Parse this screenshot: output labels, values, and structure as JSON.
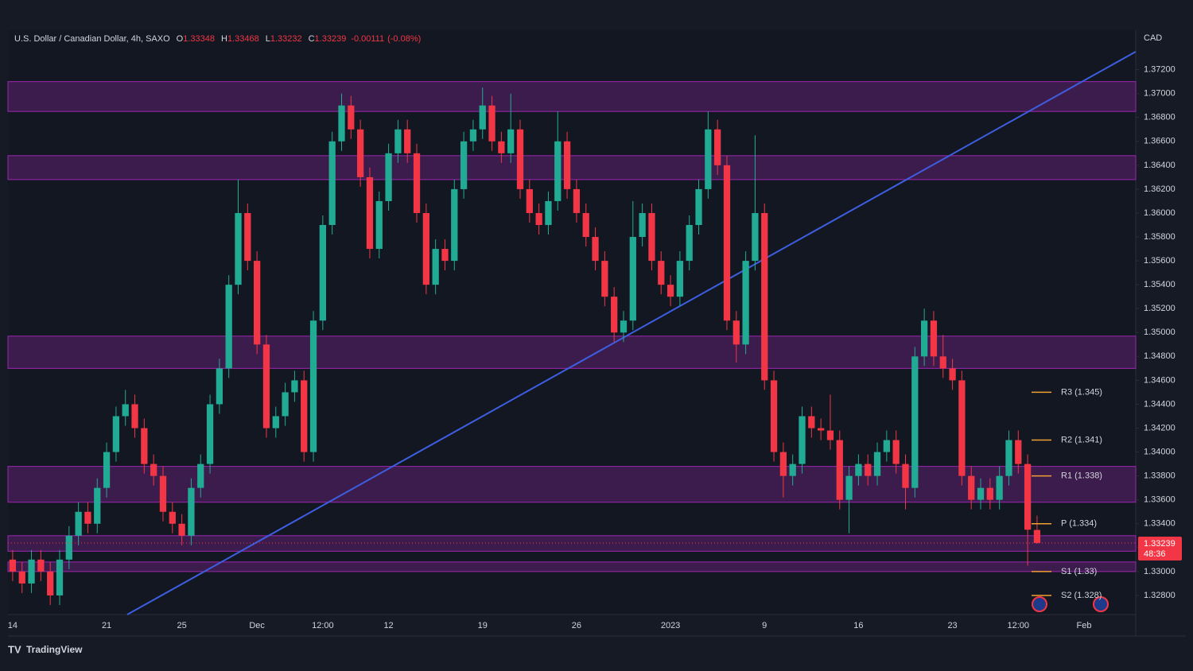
{
  "chart_data": {
    "type": "candlestick",
    "title": "U.S. Dollar / Canadian Dollar, 4h, SAXO",
    "header_values": [
      {
        "prefix": "O",
        "value": 1.33348
      },
      {
        "prefix": "H",
        "value": 1.33468
      },
      {
        "prefix": "L",
        "value": 1.33232
      },
      {
        "prefix": "C",
        "value": 1.33239
      }
    ],
    "change": -0.00111,
    "change_pct_label": "(-0.08%)",
    "currency": "CAD",
    "countdown": "48:36",
    "up_color": "#22ab94",
    "down_color": "#f23645",
    "zone_color": "#9c27b0",
    "pivot_color": "#f0a030",
    "grid": false,
    "ylim": [
      1.3264,
      1.3753
    ],
    "yticks": [
      {
        "value": 1.328,
        "label": "1.32800"
      },
      {
        "value": 1.33,
        "label": "1.33000"
      },
      {
        "value": 1.332,
        "label": "1.33200"
      },
      {
        "value": 1.334,
        "label": "1.33400"
      },
      {
        "value": 1.336,
        "label": "1.33600"
      },
      {
        "value": 1.338,
        "label": "1.33800"
      },
      {
        "value": 1.34,
        "label": "1.34000"
      },
      {
        "value": 1.342,
        "label": "1.34200"
      },
      {
        "value": 1.344,
        "label": "1.34400"
      },
      {
        "value": 1.346,
        "label": "1.34600"
      },
      {
        "value": 1.348,
        "label": "1.34800"
      },
      {
        "value": 1.35,
        "label": "1.35000"
      },
      {
        "value": 1.352,
        "label": "1.35200"
      },
      {
        "value": 1.354,
        "label": "1.35400"
      },
      {
        "value": 1.356,
        "label": "1.35600"
      },
      {
        "value": 1.358,
        "label": "1.35800"
      },
      {
        "value": 1.36,
        "label": "1.36000"
      },
      {
        "value": 1.362,
        "label": "1.36200"
      },
      {
        "value": 1.364,
        "label": "1.36400"
      },
      {
        "value": 1.366,
        "label": "1.36600"
      },
      {
        "value": 1.368,
        "label": "1.36800"
      },
      {
        "value": 1.37,
        "label": "1.37000"
      },
      {
        "value": 1.372,
        "label": "1.37200"
      }
    ],
    "categories": [
      "14",
      null,
      null,
      null,
      null,
      null,
      null,
      null,
      null,
      null,
      "21",
      null,
      null,
      null,
      null,
      null,
      null,
      null,
      "25",
      null,
      null,
      null,
      null,
      null,
      null,
      null,
      "Dec",
      null,
      null,
      null,
      null,
      null,
      null,
      "12:00",
      null,
      null,
      null,
      null,
      null,
      null,
      "12",
      null,
      null,
      null,
      null,
      null,
      null,
      null,
      null,
      null,
      "19",
      null,
      null,
      null,
      null,
      null,
      null,
      null,
      null,
      null,
      "26",
      null,
      null,
      null,
      null,
      null,
      null,
      null,
      null,
      null,
      "2023",
      null,
      null,
      null,
      null,
      null,
      null,
      null,
      null,
      null,
      "9",
      null,
      null,
      null,
      null,
      null,
      null,
      null,
      null,
      null,
      "16",
      null,
      null,
      null,
      null,
      null,
      null,
      null,
      null,
      null,
      "23",
      null,
      null,
      null,
      null,
      null,
      null,
      "12:00",
      null,
      null,
      null,
      null,
      null,
      null,
      "Feb",
      null,
      null,
      null,
      null,
      null
    ],
    "open": [
      1.331,
      1.33,
      1.329,
      1.331,
      1.33,
      1.328,
      1.331,
      1.333,
      1.335,
      1.334,
      1.337,
      1.34,
      1.343,
      1.344,
      1.342,
      1.339,
      1.338,
      1.335,
      1.334,
      1.333,
      1.337,
      1.339,
      1.344,
      1.347,
      1.354,
      1.36,
      1.356,
      1.349,
      1.342,
      1.343,
      1.345,
      1.346,
      1.34,
      1.351,
      1.359,
      1.366,
      1.369,
      1.367,
      1.363,
      1.357,
      1.361,
      1.365,
      1.367,
      1.365,
      1.36,
      1.354,
      1.357,
      1.356,
      1.362,
      1.366,
      1.367,
      1.369,
      1.366,
      1.365,
      1.367,
      1.362,
      1.36,
      1.359,
      1.361,
      1.366,
      1.362,
      1.36,
      1.358,
      1.356,
      1.353,
      1.35,
      1.351,
      1.358,
      1.36,
      1.356,
      1.354,
      1.353,
      1.356,
      1.359,
      1.362,
      1.367,
      1.364,
      1.351,
      1.349,
      1.356,
      1.36,
      1.346,
      1.34,
      1.338,
      1.339,
      1.343,
      1.342,
      1.3418,
      1.341,
      1.336,
      1.338,
      1.339,
      1.338,
      1.34,
      1.341,
      1.339,
      1.337,
      1.348,
      1.351,
      1.348,
      1.347,
      1.346,
      1.338,
      1.336,
      1.337,
      1.336,
      1.338,
      1.341,
      1.339,
      1.33348,
      null,
      null,
      null,
      null,
      null,
      null,
      null,
      null,
      null,
      null
    ],
    "high": [
      1.3318,
      1.3308,
      1.3318,
      1.3318,
      1.3308,
      1.3318,
      1.3338,
      1.3358,
      1.3358,
      1.3378,
      1.3408,
      1.3438,
      1.3452,
      1.3448,
      1.3428,
      1.3398,
      1.3388,
      1.3358,
      1.3348,
      1.3378,
      1.3398,
      1.3448,
      1.3478,
      1.3548,
      1.3628,
      1.3608,
      1.3568,
      1.3498,
      1.3438,
      1.3458,
      1.3468,
      1.3468,
      1.3518,
      1.3598,
      1.3668,
      1.37,
      1.3698,
      1.3678,
      1.3638,
      1.3618,
      1.3658,
      1.3678,
      1.3678,
      1.3658,
      1.3608,
      1.3578,
      1.3578,
      1.3628,
      1.3668,
      1.3678,
      1.3705,
      1.3698,
      1.3668,
      1.37,
      1.3678,
      1.3628,
      1.3608,
      1.3618,
      1.3685,
      1.3668,
      1.3628,
      1.3608,
      1.3588,
      1.3568,
      1.3538,
      1.3518,
      1.361,
      1.3608,
      1.3608,
      1.3568,
      1.3548,
      1.3568,
      1.3598,
      1.3628,
      1.3685,
      1.3678,
      1.3648,
      1.3518,
      1.3568,
      1.3665,
      1.3608,
      1.3468,
      1.3408,
      1.3398,
      1.3438,
      1.3438,
      1.3428,
      1.3448,
      1.3418,
      1.3388,
      1.3398,
      1.3398,
      1.3408,
      1.3418,
      1.3418,
      1.3398,
      1.3488,
      1.352,
      1.3518,
      1.3498,
      1.3478,
      1.3468,
      1.3388,
      1.3378,
      1.3378,
      1.3388,
      1.3418,
      1.3418,
      1.3398,
      1.33468,
      null,
      null,
      null,
      null,
      null,
      null,
      null,
      null,
      null,
      null
    ],
    "low": [
      1.3292,
      1.3282,
      1.3282,
      1.3292,
      1.3272,
      1.3272,
      1.3302,
      1.3322,
      1.3332,
      1.3332,
      1.3362,
      1.3392,
      1.3422,
      1.3412,
      1.3382,
      1.3372,
      1.3342,
      1.3332,
      1.3322,
      1.3322,
      1.3362,
      1.3382,
      1.3432,
      1.3462,
      1.3532,
      1.3552,
      1.3482,
      1.3412,
      1.3412,
      1.3422,
      1.3442,
      1.3392,
      1.3392,
      1.3502,
      1.3582,
      1.3652,
      1.3662,
      1.3622,
      1.3562,
      1.3562,
      1.3602,
      1.3642,
      1.3642,
      1.3592,
      1.3532,
      1.3532,
      1.3552,
      1.3552,
      1.3612,
      1.3652,
      1.3662,
      1.3652,
      1.3642,
      1.3642,
      1.3612,
      1.3592,
      1.3582,
      1.3582,
      1.3602,
      1.3612,
      1.3592,
      1.3572,
      1.3552,
      1.3522,
      1.3492,
      1.3492,
      1.3502,
      1.3572,
      1.3552,
      1.3532,
      1.3522,
      1.3522,
      1.3552,
      1.3582,
      1.3612,
      1.3632,
      1.3502,
      1.3475,
      1.3482,
      1.3552,
      1.3452,
      1.3392,
      1.3362,
      1.3372,
      1.3382,
      1.3412,
      1.341,
      1.3402,
      1.3352,
      1.3332,
      1.3372,
      1.3372,
      1.3372,
      1.3392,
      1.3382,
      1.3352,
      1.3362,
      1.3472,
      1.3472,
      1.3462,
      1.3452,
      1.3372,
      1.3352,
      1.3352,
      1.3352,
      1.3352,
      1.3372,
      1.3382,
      1.3305,
      1.33232,
      null,
      null,
      null,
      null,
      null,
      null,
      null,
      null,
      null,
      null
    ],
    "close": [
      1.33,
      1.329,
      1.331,
      1.33,
      1.328,
      1.331,
      1.333,
      1.335,
      1.334,
      1.337,
      1.34,
      1.343,
      1.344,
      1.342,
      1.339,
      1.338,
      1.335,
      1.334,
      1.333,
      1.337,
      1.339,
      1.344,
      1.347,
      1.354,
      1.36,
      1.356,
      1.349,
      1.342,
      1.343,
      1.345,
      1.346,
      1.34,
      1.351,
      1.359,
      1.366,
      1.369,
      1.367,
      1.363,
      1.357,
      1.361,
      1.365,
      1.367,
      1.365,
      1.36,
      1.354,
      1.357,
      1.356,
      1.362,
      1.366,
      1.367,
      1.369,
      1.366,
      1.365,
      1.367,
      1.362,
      1.36,
      1.359,
      1.361,
      1.366,
      1.362,
      1.36,
      1.358,
      1.356,
      1.353,
      1.35,
      1.351,
      1.358,
      1.36,
      1.356,
      1.354,
      1.353,
      1.356,
      1.359,
      1.362,
      1.367,
      1.364,
      1.351,
      1.349,
      1.356,
      1.36,
      1.346,
      1.34,
      1.338,
      1.339,
      1.343,
      1.342,
      1.3418,
      1.341,
      1.336,
      1.338,
      1.339,
      1.338,
      1.34,
      1.341,
      1.339,
      1.337,
      1.348,
      1.351,
      1.348,
      1.347,
      1.346,
      1.338,
      1.336,
      1.337,
      1.336,
      1.338,
      1.341,
      1.339,
      1.3335,
      1.33239,
      null,
      null,
      null,
      null,
      null,
      null,
      null,
      null,
      null,
      null
    ],
    "zones": [
      [
        1.3685,
        1.371
      ],
      [
        1.3628,
        1.3648
      ],
      [
        1.347,
        1.3497
      ],
      [
        1.3358,
        1.3388
      ],
      [
        1.3317,
        1.333
      ],
      [
        1.33,
        1.3308
      ]
    ],
    "pivots": [
      {
        "label": "R3 (1.345)",
        "value": 1.345
      },
      {
        "label": "R2 (1.341)",
        "value": 1.341
      },
      {
        "label": "R1 (1.338)",
        "value": 1.338
      },
      {
        "label": "P (1.334)",
        "value": 1.334
      },
      {
        "label": "S1 (1.33)",
        "value": 1.33
      },
      {
        "label": "S2 (1.328)",
        "value": 1.328
      }
    ]
  },
  "footer": {
    "brand": "TradingView"
  }
}
